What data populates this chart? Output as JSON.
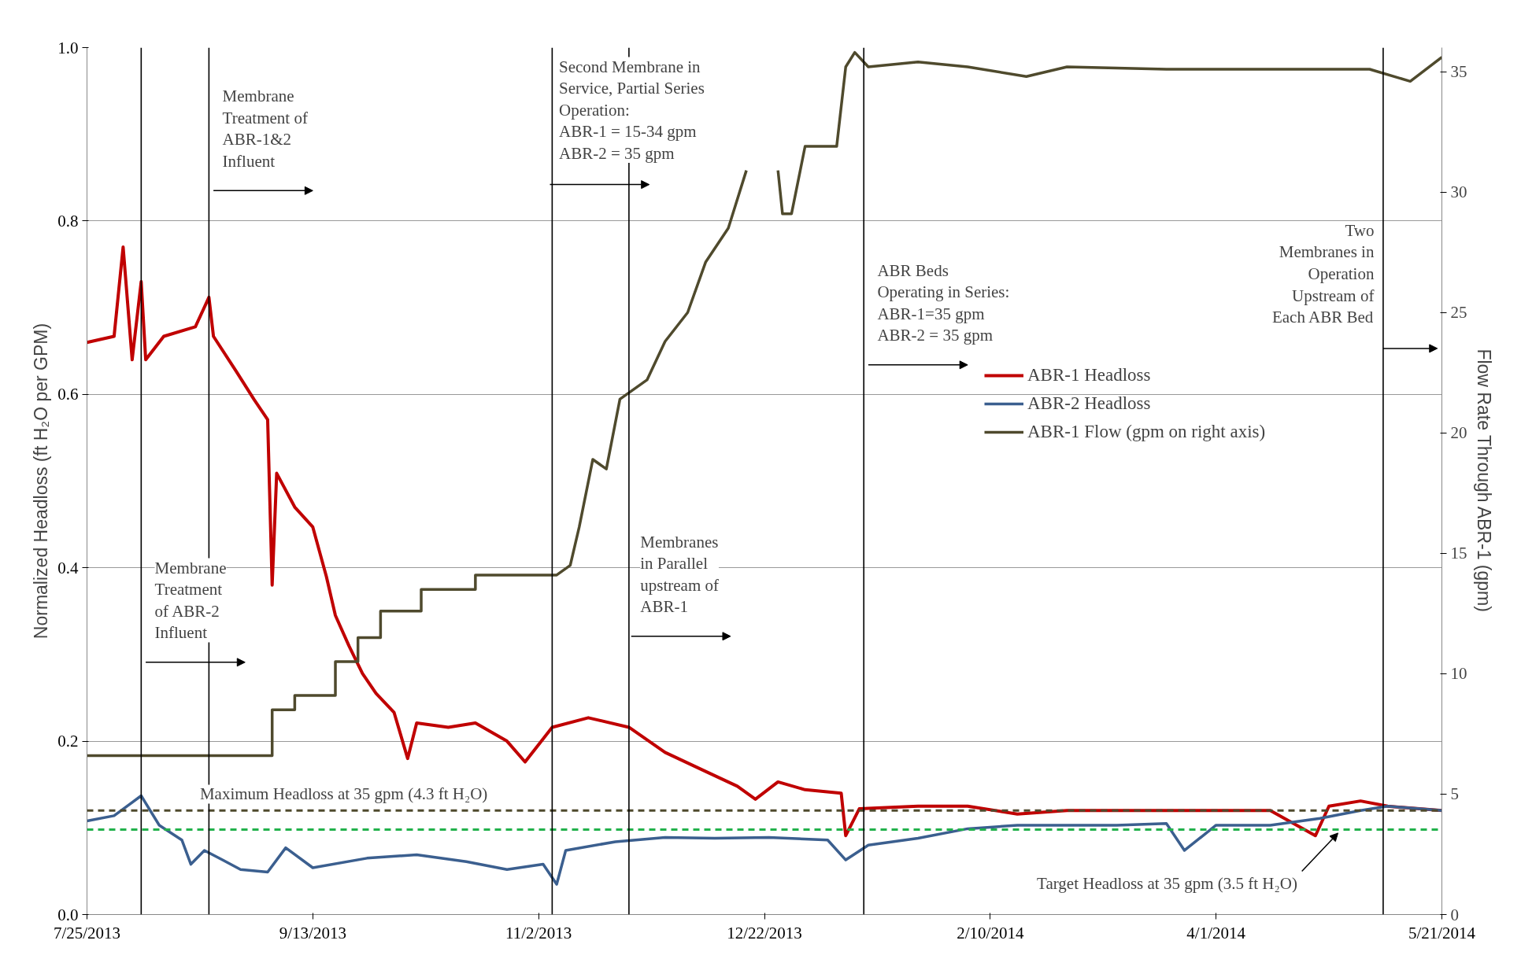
{
  "chart_data": {
    "type": "line",
    "xlabel": null,
    "ylabel": "Normalized Headloss (ft H₂O per GPM)",
    "y2label": "Flow Rate Through ABR-1 (gpm)",
    "xlim": [
      "2013-07-25",
      "2014-05-21"
    ],
    "xticks": [
      {
        "value": "2013-07-25",
        "label": "7/25/2013"
      },
      {
        "value": "2013-09-13",
        "label": "9/13/2013"
      },
      {
        "value": "2013-11-02",
        "label": "11/2/2013"
      },
      {
        "value": "2013-12-22",
        "label": "12/22/2013"
      },
      {
        "value": "2014-02-10",
        "label": "2/10/2014"
      },
      {
        "value": "2014-04-01",
        "label": "4/1/2014"
      },
      {
        "value": "2014-05-21",
        "label": "5/21/2014"
      }
    ],
    "ylim": [
      0,
      1
    ],
    "yticks": [
      {
        "value": 0,
        "label": "0.0"
      },
      {
        "value": 0.2,
        "label": "0.2"
      },
      {
        "value": 0.4,
        "label": "0.4"
      },
      {
        "value": 0.6,
        "label": "0.6"
      },
      {
        "value": 0.8,
        "label": "0.8"
      },
      {
        "value": 1,
        "label": "1.0"
      }
    ],
    "y2lim": [
      0,
      36
    ],
    "y2ticks": [
      0,
      5,
      10,
      15,
      20,
      25,
      30,
      35
    ],
    "grid": "y",
    "legend": "right",
    "line_style": "solid",
    "marker": "none",
    "series": [
      {
        "name": "ABR-1 Headloss",
        "color": "#c00000",
        "x": [
          "2013-07-25",
          "2013-07-31",
          "2013-08-02",
          "2013-08-04",
          "2013-08-06",
          "2013-08-07",
          "2013-08-11",
          "2013-08-18",
          "2013-08-21",
          "2013-08-22",
          "2013-08-27",
          "2013-08-31",
          "2013-09-03",
          "2013-09-04",
          "2013-09-05",
          "2013-09-09",
          "2013-09-13",
          "2013-09-16",
          "2013-09-18",
          "2013-09-21",
          "2013-09-24",
          "2013-09-27",
          "2013-10-01",
          "2013-10-04",
          "2013-10-06",
          "2013-10-13",
          "2013-10-19",
          "2013-10-26",
          "2013-10-30",
          "2013-11-05",
          "2013-11-13",
          "2013-11-22",
          "2013-11-30",
          "2013-12-09",
          "2013-12-16",
          "2013-12-20",
          "2013-12-25",
          "2013-12-31",
          "2014-01-08",
          "2014-01-09",
          "2014-01-12",
          "2014-01-25",
          "2014-02-05",
          "2014-02-16",
          "2014-02-27",
          "2014-03-21",
          "2014-04-13",
          "2014-04-23",
          "2014-04-26",
          "2014-05-03",
          "2014-05-09",
          "2014-05-21"
        ],
        "values": [
          0.66,
          0.667,
          0.77,
          0.64,
          0.73,
          0.64,
          0.667,
          0.678,
          0.712,
          0.667,
          0.627,
          0.594,
          0.571,
          0.38,
          0.509,
          0.47,
          0.447,
          0.39,
          0.345,
          0.31,
          0.278,
          0.255,
          0.233,
          0.18,
          0.221,
          0.216,
          0.221,
          0.2,
          0.176,
          0.216,
          0.227,
          0.216,
          0.187,
          0.165,
          0.148,
          0.133,
          0.153,
          0.144,
          0.14,
          0.091,
          0.122,
          0.125,
          0.125,
          0.116,
          0.12,
          0.12,
          0.12,
          0.091,
          0.125,
          0.131,
          0.125,
          0.12
        ]
      },
      {
        "name": "ABR-2 Headloss",
        "color": "#3b5f8f",
        "x": [
          "2013-07-25",
          "2013-07-31",
          "2013-08-06",
          "2013-08-10",
          "2013-08-15",
          "2013-08-17",
          "2013-08-20",
          "2013-08-24",
          "2013-08-28",
          "2013-09-03",
          "2013-09-07",
          "2013-09-13",
          "2013-09-25",
          "2013-10-06",
          "2013-10-17",
          "2013-10-26",
          "2013-11-03",
          "2013-11-06",
          "2013-11-08",
          "2013-11-19",
          "2013-11-30",
          "2013-12-11",
          "2013-12-23",
          "2014-01-05",
          "2014-01-09",
          "2014-01-14",
          "2014-01-25",
          "2014-02-05",
          "2014-02-16",
          "2014-02-27",
          "2014-03-10",
          "2014-03-21",
          "2014-03-25",
          "2014-04-01",
          "2014-04-13",
          "2014-04-24",
          "2014-05-03",
          "2014-05-09",
          "2014-05-21"
        ],
        "values": [
          0.108,
          0.114,
          0.137,
          0.103,
          0.086,
          0.058,
          0.074,
          0.063,
          0.052,
          0.049,
          0.077,
          0.054,
          0.065,
          0.069,
          0.061,
          0.052,
          0.058,
          0.035,
          0.074,
          0.084,
          0.089,
          0.088,
          0.089,
          0.086,
          0.063,
          0.08,
          0.088,
          0.099,
          0.103,
          0.103,
          0.103,
          0.105,
          0.074,
          0.103,
          0.103,
          0.111,
          0.12,
          0.125,
          0.12
        ]
      },
      {
        "name": "ABR-1 Flow (gpm on right axis)",
        "color": "#4f4a2d",
        "axis": "y2",
        "x": [
          "2013-07-25",
          "2013-09-04",
          "2013-09-04",
          "2013-09-09",
          "2013-09-09",
          "2013-09-18",
          "2013-09-18",
          "2013-09-23",
          "2013-09-23",
          "2013-09-28",
          "2013-09-28",
          "2013-10-07",
          "2013-10-07",
          "2013-10-19",
          "2013-10-19",
          "2013-11-06",
          "2013-11-09",
          "2013-11-11",
          "2013-11-14",
          "2013-11-17",
          "2013-11-20",
          "2013-11-26",
          "2013-11-30",
          "2013-12-05",
          "2013-12-09",
          "2013-12-14",
          "2013-12-18",
          "2013-12-19",
          "2013-12-25",
          "2013-12-26",
          "2013-12-28",
          "2013-12-31",
          "2014-01-07",
          "2014-01-09",
          "2014-01-11",
          "2014-01-14",
          "2014-01-25",
          "2014-02-05",
          "2014-02-18",
          "2014-02-27",
          "2014-03-21",
          "2014-04-13",
          "2014-05-05",
          "2014-05-14",
          "2014-05-21"
        ],
        "values": [
          6.6,
          6.6,
          8.5,
          8.5,
          9.1,
          9.1,
          10.5,
          10.5,
          11.5,
          11.5,
          12.6,
          12.6,
          13.5,
          13.5,
          14.1,
          14.1,
          14.5,
          16.1,
          18.9,
          18.5,
          21.4,
          22.2,
          23.8,
          25.0,
          27.1,
          28.5,
          30.9,
          null,
          30.9,
          29.1,
          29.1,
          31.9,
          31.9,
          35.2,
          35.8,
          35.2,
          35.4,
          35.2,
          34.8,
          35.2,
          35.1,
          35.1,
          35.1,
          34.6,
          35.6
        ]
      }
    ],
    "ref_lines": [
      {
        "axis": "y",
        "value": 0.12,
        "label": "Maximum Headloss at 35 gpm (4.3 ft H₂O)",
        "color": "#4f4a2d",
        "line_style": "dashed"
      },
      {
        "axis": "y",
        "value": 0.098,
        "label": "Target Headloss at 35 gpm (3.5 ft H₂O)",
        "color": "#22b14c",
        "line_style": "dashed"
      },
      {
        "axis": "x",
        "value": "2013-08-06",
        "label": null,
        "color": "#000000"
      },
      {
        "axis": "x",
        "value": "2013-08-21",
        "label": null,
        "color": "#000000"
      },
      {
        "axis": "x",
        "value": "2013-11-05",
        "label": null,
        "color": "#000000"
      },
      {
        "axis": "x",
        "value": "2013-11-22",
        "label": null,
        "color": "#000000"
      },
      {
        "axis": "x",
        "value": "2014-01-13",
        "label": null,
        "color": "#000000"
      },
      {
        "axis": "x",
        "value": "2014-05-08",
        "label": null,
        "color": "#000000"
      }
    ],
    "annotations": [
      "Membrane\nTreatment of\nABR-1&2\nInfluent",
      "Membrane\nTreatment\nof ABR-2\nInfluent",
      "Second Membrane in\nService, Partial Series\nOperation:\nABR-1 = 15-34 gpm\nABR-2 = 35 gpm",
      "Membranes\nin Parallel\nupstream of\nABR-1",
      "ABR Beds\nOperating in Series:\nABR-1=35 gpm\nABR-2 = 35 gpm",
      "Two\nMembranes in\nOperation\nUpstream of\nEach ABR Bed"
    ]
  }
}
